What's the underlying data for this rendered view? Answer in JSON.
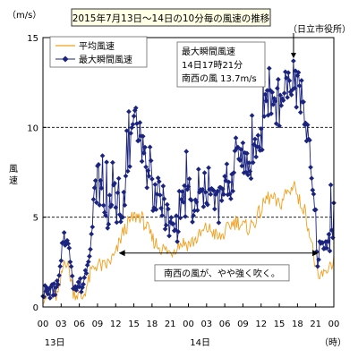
{
  "chart_data": {
    "type": "line",
    "title": "2015年7月13日～14日の10分毎の風速の推移",
    "station": "（日立市役所）",
    "ylabel_unit": "（m/s）",
    "ylabel": "風速",
    "xunit": "（時）",
    "ylim": [
      0,
      15
    ],
    "yticks": [
      0,
      5,
      10,
      15
    ],
    "grid_y": [
      5,
      10
    ],
    "xlim": [
      0,
      48
    ],
    "xticks": [
      {
        "h": 0,
        "label": "00"
      },
      {
        "h": 3,
        "label": "03"
      },
      {
        "h": 6,
        "label": "06"
      },
      {
        "h": 9,
        "label": "09"
      },
      {
        "h": 12,
        "label": "12"
      },
      {
        "h": 15,
        "label": "15"
      },
      {
        "h": 18,
        "label": "18"
      },
      {
        "h": 21,
        "label": "21"
      },
      {
        "h": 24,
        "label": "00"
      },
      {
        "h": 27,
        "label": "03"
      },
      {
        "h": 30,
        "label": "06"
      },
      {
        "h": 33,
        "label": "09"
      },
      {
        "h": 36,
        "label": "12"
      },
      {
        "h": 39,
        "label": "15"
      },
      {
        "h": 42,
        "label": "18"
      },
      {
        "h": 45,
        "label": "21"
      },
      {
        "h": 48,
        "label": "00"
      }
    ],
    "day_labels": [
      {
        "h": 1.5,
        "label": "13日"
      },
      {
        "h": 25.5,
        "label": "14日"
      }
    ],
    "legend": {
      "position": "top-left",
      "items": [
        {
          "name": "平均風速",
          "color": "#f2a01e",
          "marker": "none"
        },
        {
          "name": "最大瞬間風速",
          "color": "#1a237e",
          "marker": "diamond"
        }
      ]
    },
    "annotation": {
      "lines": [
        "最大瞬間風速",
        "14日17時21分",
        "南西の風 13.7m/s"
      ],
      "peak": {
        "h": 41.35,
        "value": 13.7
      }
    },
    "range_note": {
      "text": "南西の風が、やや強く吹く。",
      "from_h": 12.5,
      "to_h": 45.5,
      "value": 3.0
    },
    "anchors_max": [
      [
        0,
        0.9
      ],
      [
        1,
        0.8
      ],
      [
        2,
        1.0
      ],
      [
        2.5,
        1.2
      ],
      [
        3,
        2.4
      ],
      [
        3.3,
        3.8
      ],
      [
        3.7,
        4.2
      ],
      [
        4,
        3.6
      ],
      [
        4.6,
        2.6
      ],
      [
        5,
        1.4
      ],
      [
        5.5,
        1.0
      ],
      [
        6,
        1.3
      ],
      [
        6.5,
        1.1
      ],
      [
        7,
        1.9
      ],
      [
        7.5,
        2.8
      ],
      [
        8,
        4.0
      ],
      [
        8.5,
        6.0
      ],
      [
        9,
        7.2
      ],
      [
        9.5,
        6.5
      ],
      [
        10,
        5.8
      ],
      [
        11,
        5.2
      ],
      [
        11.5,
        7.0
      ],
      [
        12,
        5.5
      ],
      [
        13,
        5.8
      ],
      [
        14,
        7.6
      ],
      [
        15,
        9.6
      ],
      [
        15.5,
        10.4
      ],
      [
        16,
        10.0
      ],
      [
        16.5,
        8.6
      ],
      [
        17,
        7.6
      ],
      [
        17.5,
        6.8
      ],
      [
        18,
        6.5
      ],
      [
        19,
        6.1
      ],
      [
        20,
        5.6
      ],
      [
        20.5,
        4.9
      ],
      [
        21,
        4.3
      ],
      [
        22,
        4.4
      ],
      [
        22.5,
        5.4
      ],
      [
        23,
        6.1
      ],
      [
        24,
        5.8
      ],
      [
        25,
        5.1
      ],
      [
        26,
        6.0
      ],
      [
        27,
        6.6
      ],
      [
        28,
        6.0
      ],
      [
        29,
        5.7
      ],
      [
        30,
        6.4
      ],
      [
        31,
        6.9
      ],
      [
        31.5,
        7.6
      ],
      [
        32,
        8.8
      ],
      [
        33,
        8.2
      ],
      [
        34,
        7.6
      ],
      [
        35,
        8.8
      ],
      [
        36,
        9.3
      ],
      [
        36.5,
        10.6
      ],
      [
        37,
        11.2
      ],
      [
        38,
        11.6
      ],
      [
        39,
        11.0
      ],
      [
        40,
        12.0
      ],
      [
        40.5,
        12.6
      ],
      [
        41,
        11.6
      ],
      [
        41.35,
        13.7
      ],
      [
        41.8,
        11.5
      ],
      [
        42,
        12.2
      ],
      [
        43,
        11.5
      ],
      [
        44,
        8.2
      ],
      [
        44.5,
        6.5
      ],
      [
        45,
        4.5
      ],
      [
        45.3,
        2.5
      ],
      [
        45.7,
        3.4
      ],
      [
        46,
        3.5
      ],
      [
        46.5,
        3.2
      ],
      [
        47,
        3.9
      ],
      [
        47.5,
        4.2
      ],
      [
        48,
        5.0
      ]
    ],
    "anchors_avg": [
      [
        0,
        0.6
      ],
      [
        2,
        0.6
      ],
      [
        2.6,
        0.7
      ],
      [
        3,
        1.6
      ],
      [
        3.6,
        2.8
      ],
      [
        4.3,
        2.1
      ],
      [
        5,
        0.9
      ],
      [
        6,
        0.6
      ],
      [
        6.5,
        0.5
      ],
      [
        7.5,
        1.4
      ],
      [
        8,
        2.0
      ],
      [
        9,
        2.4
      ],
      [
        10,
        2.2
      ],
      [
        11,
        2.5
      ],
      [
        12,
        2.9
      ],
      [
        13,
        4.0
      ],
      [
        14,
        4.6
      ],
      [
        15,
        5.0
      ],
      [
        16,
        5.1
      ],
      [
        17,
        4.5
      ],
      [
        18,
        3.8
      ],
      [
        19,
        3.4
      ],
      [
        20,
        3.2
      ],
      [
        21,
        3.0
      ],
      [
        22,
        3.4
      ],
      [
        23,
        3.6
      ],
      [
        24,
        3.5
      ],
      [
        25,
        3.7
      ],
      [
        26,
        4.0
      ],
      [
        27,
        4.4
      ],
      [
        28,
        4.2
      ],
      [
        29,
        3.8
      ],
      [
        30,
        4.1
      ],
      [
        31,
        4.6
      ],
      [
        32,
        4.8
      ],
      [
        33,
        4.5
      ],
      [
        34,
        4.4
      ],
      [
        35,
        4.8
      ],
      [
        36,
        5.4
      ],
      [
        37,
        6.1
      ],
      [
        38,
        6.0
      ],
      [
        39,
        5.6
      ],
      [
        40,
        6.3
      ],
      [
        41,
        6.5
      ],
      [
        41.4,
        7.2
      ],
      [
        42,
        6.0
      ],
      [
        43,
        5.6
      ],
      [
        44,
        4.2
      ],
      [
        44.5,
        3.2
      ],
      [
        45,
        2.2
      ],
      [
        45.5,
        1.3
      ],
      [
        46,
        1.9
      ],
      [
        46.5,
        1.7
      ],
      [
        47,
        2.2
      ],
      [
        48,
        2.6
      ]
    ]
  }
}
